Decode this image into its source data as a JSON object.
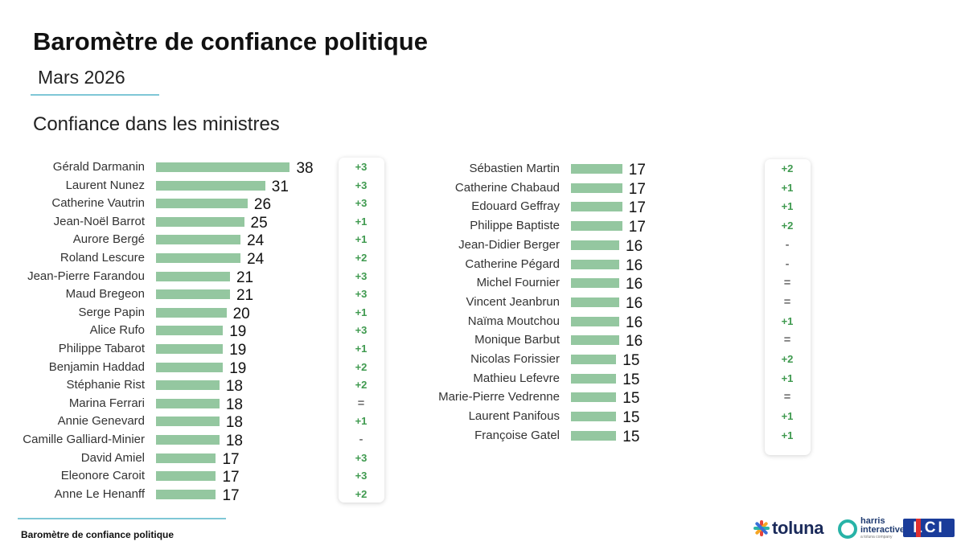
{
  "header": {
    "title": "Baromètre de confiance politique",
    "subtitle": "Mars 2026",
    "section": "Confiance dans les ministres"
  },
  "footer": {
    "text": "Baromètre de confiance politique"
  },
  "logos": {
    "toluna": "toluna",
    "harris": "harris interactive",
    "harris_sub": "a toluna company",
    "lci": "LCI"
  },
  "colors": {
    "bar": "#94c7a0",
    "change_positive": "#3f9a4f",
    "rule": "#7fc7d6"
  },
  "chart_data": [
    {
      "type": "bar",
      "orientation": "horizontal",
      "categories": [
        "Gérald Darmanin",
        "Laurent Nunez",
        "Catherine Vautrin",
        "Jean-Noël Barrot",
        "Aurore Bergé",
        "Roland Lescure",
        "Jean-Pierre Farandou",
        "Maud Bregeon",
        "Serge Papin",
        "Alice Rufo",
        "Philippe Tabarot",
        "Benjamin Haddad",
        "Stéphanie Rist",
        "Marina Ferrari",
        "Annie Genevard",
        "Camille Galliard-Minier",
        "David Amiel",
        "Eleonore Caroit",
        "Anne Le Henanff"
      ],
      "values": [
        38,
        31,
        26,
        25,
        24,
        24,
        21,
        21,
        20,
        19,
        19,
        19,
        18,
        18,
        18,
        18,
        17,
        17,
        17
      ],
      "changes": [
        "+3",
        "+3",
        "+3",
        "+1",
        "+1",
        "+2",
        "+3",
        "+3",
        "+1",
        "+3",
        "+1",
        "+2",
        "+2",
        "=",
        "+1",
        "-",
        "+3",
        "+3",
        "+2"
      ]
    },
    {
      "type": "bar",
      "orientation": "horizontal",
      "categories": [
        "Sébastien Martin",
        "Catherine Chabaud",
        "Edouard Geffray",
        "Philippe Baptiste",
        "Jean-Didier Berger",
        "Catherine Pégard",
        "Michel Fournier",
        "Vincent Jeanbrun",
        "Naïma Moutchou",
        "Monique Barbut",
        "Nicolas Forissier",
        "Mathieu Lefevre",
        "Marie-Pierre Vedrenne",
        "Laurent Panifous",
        "Françoise Gatel"
      ],
      "values": [
        17,
        17,
        17,
        17,
        16,
        16,
        16,
        16,
        16,
        16,
        15,
        15,
        15,
        15,
        15
      ],
      "changes": [
        "+2",
        "+1",
        "+1",
        "+2",
        "-",
        "-",
        "=",
        "=",
        "+1",
        "=",
        "+2",
        "+1",
        "=",
        "+1",
        "+1"
      ]
    }
  ]
}
